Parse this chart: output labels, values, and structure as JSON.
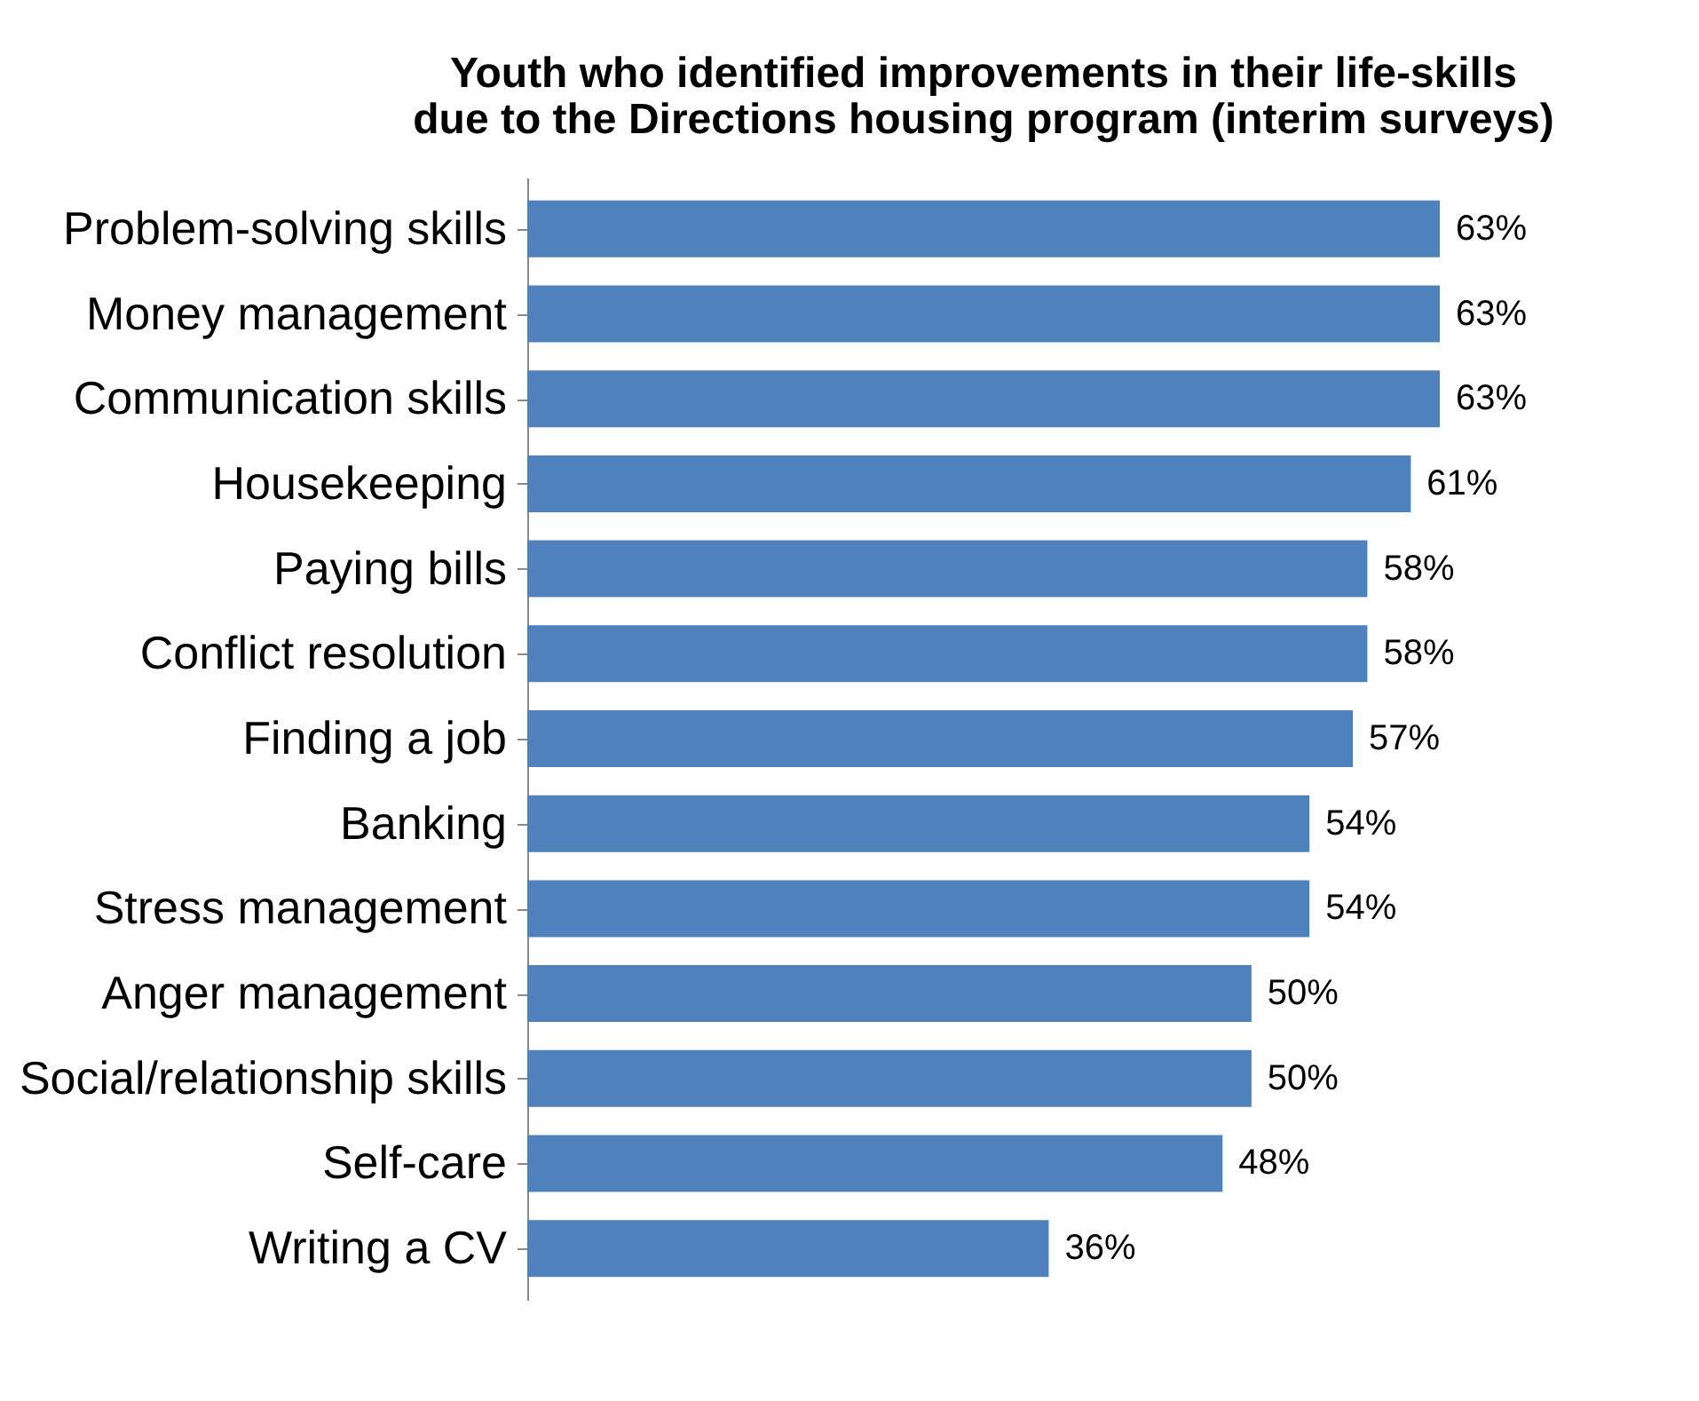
{
  "chart_data": {
    "type": "bar",
    "orientation": "horizontal",
    "title": "Youth who identified improvements in their life-skills\ndue to the Directions housing program (interim surveys)",
    "categories": [
      "Problem-solving skills",
      "Money management",
      "Communication skills",
      "Housekeeping",
      "Paying bills",
      "Conflict resolution",
      "Finding a job",
      "Banking",
      "Stress management",
      "Anger management",
      "Social/relationship skills",
      "Self-care",
      "Writing a CV"
    ],
    "values": [
      63,
      63,
      63,
      61,
      58,
      58,
      57,
      54,
      54,
      50,
      50,
      48,
      36
    ],
    "value_labels": [
      "63%",
      "63%",
      "63%",
      "61%",
      "58%",
      "58%",
      "57%",
      "54%",
      "54%",
      "50%",
      "50%",
      "48%",
      "36%"
    ],
    "color": "#4f81bd",
    "grid": false,
    "tick_labels": "y"
  }
}
